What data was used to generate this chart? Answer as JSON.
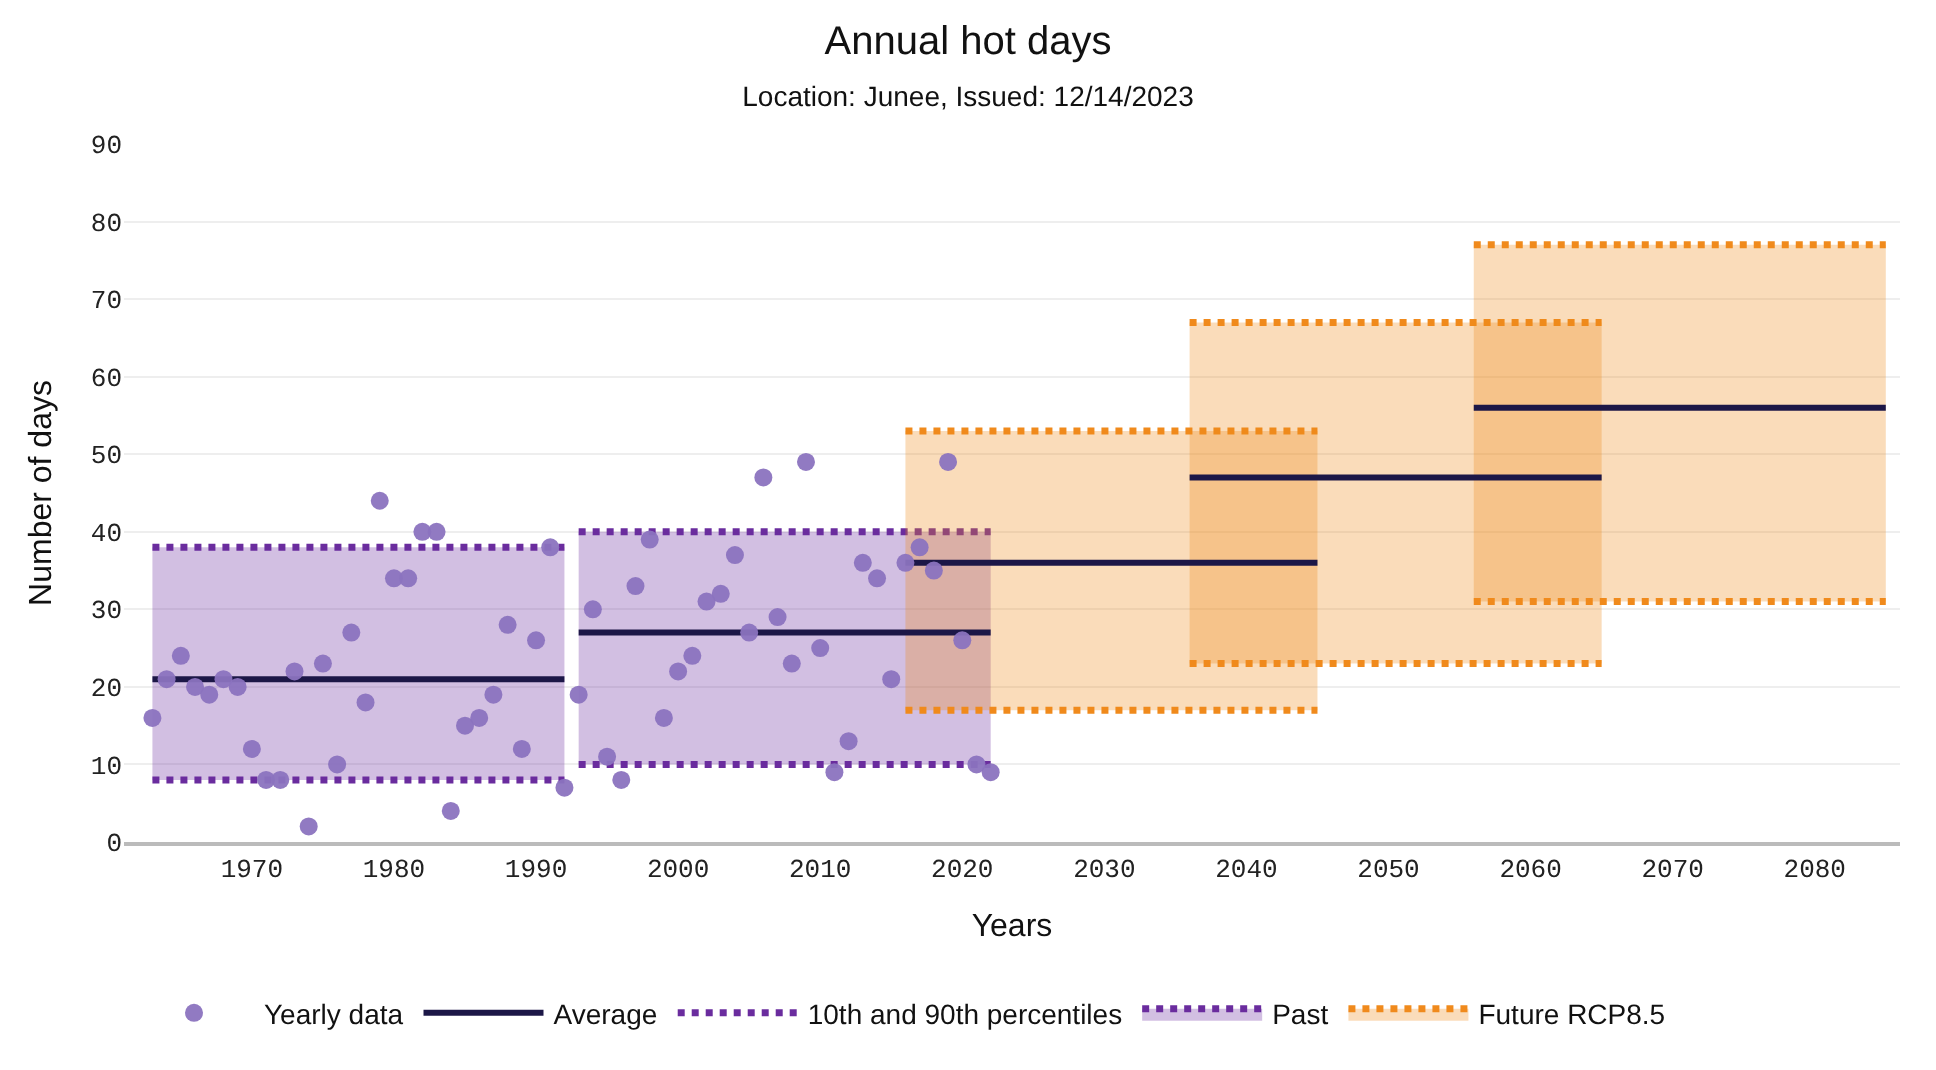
{
  "chart_data": {
    "type": "scatter",
    "title": "Annual hot days",
    "subtitle": "Location: Junee, Issued: 12/14/2023",
    "xlabel": "Years",
    "ylabel": "Number of days",
    "xlim": [
      1961,
      2086
    ],
    "xticks": [
      1970,
      1980,
      1990,
      2000,
      2010,
      2020,
      2030,
      2040,
      2050,
      2060,
      2070,
      2080
    ],
    "ylim": [
      0,
      90
    ],
    "yticks": [
      0,
      10,
      20,
      30,
      40,
      50,
      60,
      70,
      80,
      90
    ],
    "grid": "y",
    "legend": "bottom",
    "series": [
      {
        "type": "line",
        "name": "10th and 90th percentiles",
        "line_style": "dotted",
        "color": "#6a2c9e",
        "x": [
          1963,
          1992
        ],
        "values": [
          8,
          8
        ]
      },
      {
        "type": "area",
        "name": "Past",
        "line_style": "dotted",
        "color": "#6a2c9e",
        "x": [
          1963,
          1992
        ],
        "values": [
          38,
          38
        ]
      },
      {
        "type": "line",
        "line_style": "dotted",
        "color": "#6a2c9e",
        "x": [
          1993,
          2022
        ],
        "values": [
          10,
          10
        ]
      },
      {
        "type": "area",
        "line_style": "dotted",
        "color": "#6a2c9e",
        "x": [
          1993,
          2022
        ],
        "values": [
          40,
          40
        ]
      },
      {
        "type": "line",
        "line_style": "dotted",
        "color": "#f08a1c",
        "x": [
          2016,
          2045
        ],
        "values": [
          17,
          17
        ]
      },
      {
        "type": "area",
        "name": "Future RCP8.5",
        "line_style": "dotted",
        "color": "#f08a1c",
        "x": [
          2016,
          2045
        ],
        "values": [
          53,
          53
        ]
      },
      {
        "type": "line",
        "line_style": "dotted",
        "color": "#f08a1c",
        "x": [
          2036,
          2065
        ],
        "values": [
          23,
          23
        ]
      },
      {
        "type": "area",
        "line_style": "dotted",
        "color": "#f08a1c",
        "x": [
          2036,
          2065
        ],
        "values": [
          67,
          67
        ]
      },
      {
        "type": "line",
        "line_style": "dotted",
        "color": "#f08a1c",
        "x": [
          2056,
          2085
        ],
        "values": [
          31,
          31
        ]
      },
      {
        "type": "area",
        "line_style": "dotted",
        "color": "#f08a1c",
        "x": [
          2056,
          2085
        ],
        "values": [
          77,
          77
        ]
      },
      {
        "type": "line",
        "name": "Average",
        "line_style": "solid",
        "color": "#1c1747",
        "x": [
          1963,
          1992
        ],
        "values": [
          21,
          21
        ]
      },
      {
        "type": "line",
        "line_style": "solid",
        "color": "#1c1747",
        "x": [
          1993,
          2022
        ],
        "values": [
          27,
          27
        ]
      },
      {
        "type": "line",
        "line_style": "solid",
        "color": "#1c1747",
        "x": [
          2016,
          2045
        ],
        "values": [
          36,
          36
        ]
      },
      {
        "type": "line",
        "line_style": "solid",
        "color": "#1c1747",
        "x": [
          2036,
          2065
        ],
        "values": [
          47,
          47
        ]
      },
      {
        "type": "line",
        "line_style": "solid",
        "color": "#1c1747",
        "x": [
          2056,
          2085
        ],
        "values": [
          56,
          56
        ]
      },
      {
        "name": "Yearly data",
        "color": "#8b73bf",
        "marker": "circle",
        "x": [
          1963,
          1964,
          1965,
          1966,
          1967,
          1968,
          1969,
          1970,
          1971,
          1972,
          1973,
          1974,
          1975,
          1976,
          1977,
          1978,
          1979,
          1980,
          1981,
          1982,
          1983,
          1984,
          1985,
          1986,
          1987,
          1988,
          1989,
          1990,
          1991,
          1992,
          1993,
          1994,
          1995,
          1996,
          1997,
          1998,
          1999,
          2000,
          2001,
          2002,
          2003,
          2004,
          2005,
          2006,
          2007,
          2008,
          2009,
          2010,
          2011,
          2012,
          2013,
          2014,
          2015,
          2016,
          2017,
          2018,
          2019,
          2020,
          2021,
          2022
        ],
        "values": [
          16,
          21,
          24,
          20,
          19,
          21,
          20,
          12,
          8,
          8,
          22,
          2,
          23,
          10,
          27,
          18,
          44,
          34,
          34,
          40,
          40,
          4,
          15,
          16,
          19,
          28,
          12,
          26,
          38,
          7,
          19,
          30,
          11,
          8,
          33,
          39,
          16,
          22,
          24,
          31,
          32,
          37,
          27,
          47,
          29,
          23,
          49,
          25,
          9,
          13,
          36,
          34,
          21,
          36,
          38,
          35,
          49,
          26,
          10,
          9
        ]
      }
    ]
  }
}
